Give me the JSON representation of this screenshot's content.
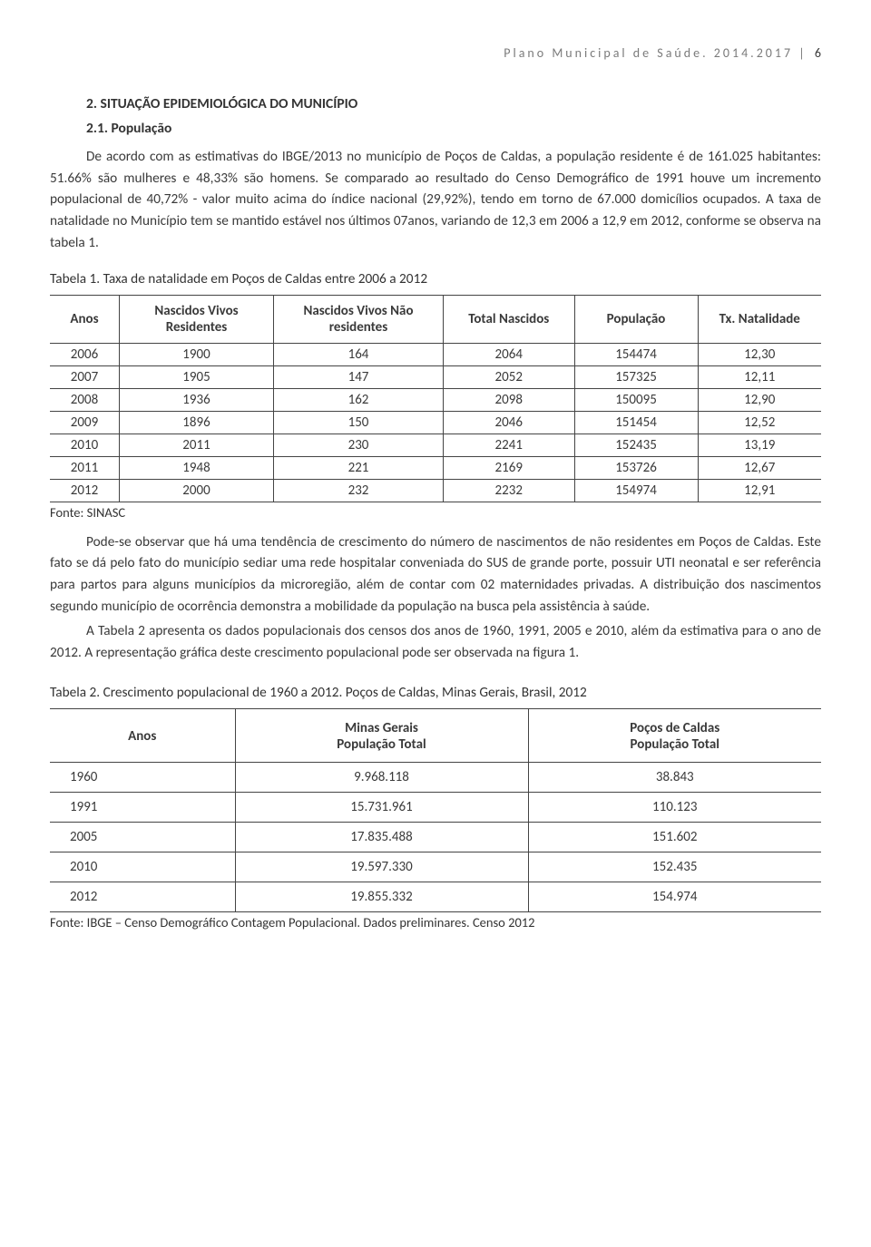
{
  "header": {
    "running": "Plano Municipal de Saúde. 2014.2017",
    "divider": "|",
    "page": "6"
  },
  "section": {
    "title": "2. SITUAÇÃO EPIDEMIOLÓGICA DO MUNICÍPIO",
    "subtitle": "2.1. População"
  },
  "paragraphs": {
    "p1": "De acordo com as estimativas do IBGE/2013 no município de Poços de Caldas, a população residente é de 161.025 habitantes: 51.66% são mulheres e 48,33% são homens. Se comparado ao resultado do Censo Demográfico de 1991 houve um incremento populacional de 40,72% - valor muito acima do índice nacional (29,92%), tendo em torno de 67.000 domicílios ocupados. A taxa de natalidade no Município tem se mantido estável nos últimos 07anos, variando de 12,3 em 2006 a 12,9 em 2012, conforme se observa na tabela 1.",
    "p2": "Pode-se observar que há uma tendência de crescimento do número de nascimentos de não residentes em Poços de Caldas. Este fato se dá pelo fato do município sediar uma rede hospitalar conveniada do SUS de grande porte, possuir UTI neonatal e ser referência para partos para alguns municípios da microregião, além de  contar com 02 maternidades privadas. A distribuição dos nascimentos segundo município de ocorrência demonstra a mobilidade da população na busca pela assistência à saúde.",
    "p3": "A Tabela 2 apresenta os dados populacionais dos censos dos anos de 1960, 1991, 2005 e 2010, além da estimativa para o ano de 2012. A representação gráfica deste crescimento populacional pode ser observada na figura 1."
  },
  "table1": {
    "title": "Tabela 1. Taxa de natalidade em Poços de Caldas entre 2006 a 2012",
    "columns": [
      "Anos",
      "Nascidos Vivos Residentes",
      "Nascidos Vivos Não residentes",
      "Total Nascidos",
      "População",
      "Tx. Natalidade"
    ],
    "rows": [
      [
        "2006",
        "1900",
        "164",
        "2064",
        "154474",
        "12,30"
      ],
      [
        "2007",
        "1905",
        "147",
        "2052",
        "157325",
        "12,11"
      ],
      [
        "2008",
        "1936",
        "162",
        "2098",
        "150095",
        "12,90"
      ],
      [
        "2009",
        "1896",
        "150",
        "2046",
        "151454",
        "12,52"
      ],
      [
        "2010",
        "2011",
        "230",
        "2241",
        "152435",
        "13,19"
      ],
      [
        "2011",
        "1948",
        "221",
        "2169",
        "153726",
        "12,67"
      ],
      [
        "2012",
        "2000",
        "232",
        "2232",
        "154974",
        "12,91"
      ]
    ],
    "source": "Fonte: SINASC",
    "col_widths": [
      "9%",
      "20%",
      "22%",
      "17%",
      "16%",
      "16%"
    ]
  },
  "table2": {
    "title": "Tabela 2. Crescimento populacional de 1960 a 2012. Poços de Caldas, Minas Gerais, Brasil, 2012",
    "columns": {
      "c1": "Anos",
      "c2a": "Minas Gerais",
      "c2b": "População Total",
      "c3a": "Poços de Caldas",
      "c3b": "População Total"
    },
    "rows": [
      [
        "1960",
        "9.968.118",
        "38.843"
      ],
      [
        "1991",
        "15.731.961",
        "110.123"
      ],
      [
        "2005",
        "17.835.488",
        "151.602"
      ],
      [
        "2010",
        "19.597.330",
        "152.435"
      ],
      [
        "2012",
        "19.855.332",
        "154.974"
      ]
    ],
    "source": "Fonte: IBGE – Censo Demográfico Contagem Populacional. Dados preliminares. Censo 2012"
  }
}
